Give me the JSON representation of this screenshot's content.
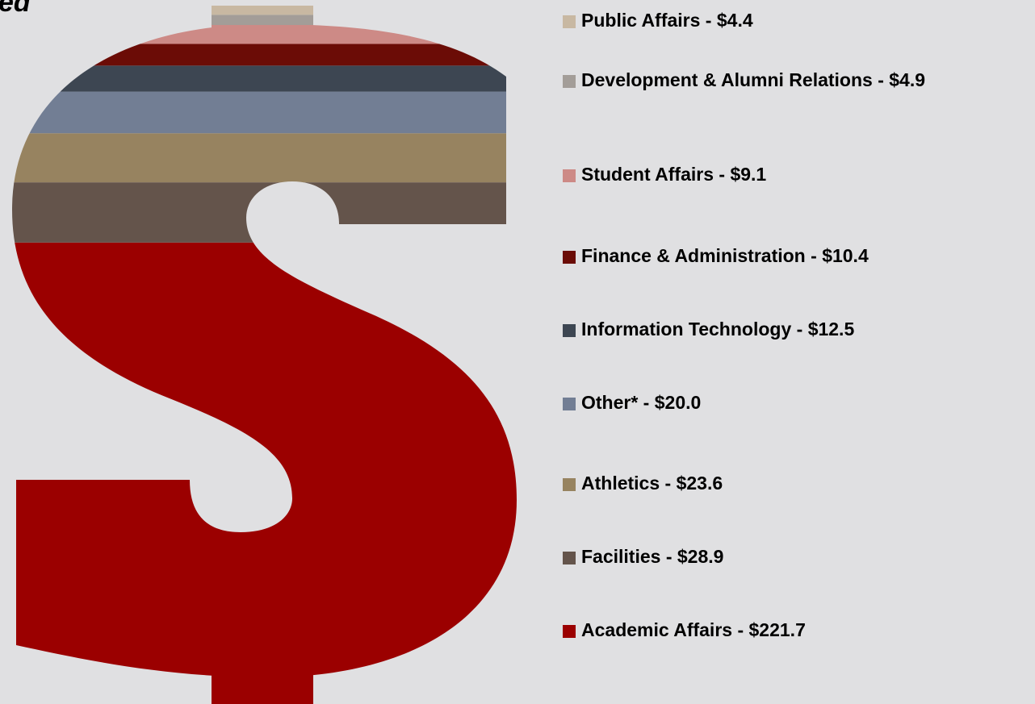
{
  "chart_data": {
    "type": "pictorial-stack",
    "title": "ed",
    "separator": " - ",
    "series": [
      {
        "name": "Public Affairs",
        "color": "#c8b8a2",
        "values": [
          4.4
        ],
        "value_labels": [
          "$4.4"
        ]
      },
      {
        "name": "Development & Alumni Relations",
        "color": "#a39d98",
        "values": [
          4.9
        ],
        "value_labels": [
          "$4.9"
        ]
      },
      {
        "name": "Student Affairs",
        "color": "#cd8a86",
        "values": [
          9.1
        ],
        "value_labels": [
          "$9.1"
        ]
      },
      {
        "name": "Finance & Administration",
        "color": "#6b0c06",
        "values": [
          10.4
        ],
        "value_labels": [
          "$10.4"
        ]
      },
      {
        "name": "Information Technology",
        "color": "#3d4652",
        "values": [
          12.5
        ],
        "value_labels": [
          "$12.5"
        ]
      },
      {
        "name": "Other*",
        "color": "#727e94",
        "values": [
          20.0
        ],
        "value_labels": [
          "$20.0"
        ]
      },
      {
        "name": "Athletics",
        "color": "#978360",
        "values": [
          23.6
        ],
        "value_labels": [
          "$23.6"
        ]
      },
      {
        "name": "Facilities",
        "color": "#64544b",
        "values": [
          28.9
        ],
        "value_labels": [
          "$28.9"
        ]
      },
      {
        "name": "Academic Affairs",
        "color": "#9b0000",
        "values": [
          221.7
        ],
        "value_labels": [
          "$221.7"
        ]
      }
    ]
  }
}
